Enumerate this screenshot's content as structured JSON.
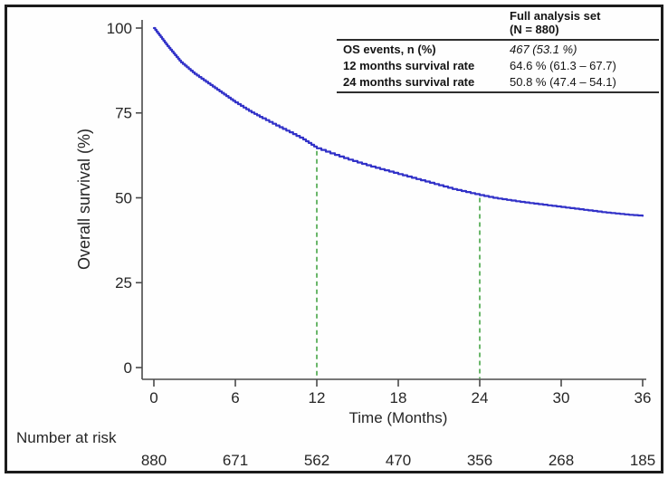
{
  "chart_data": {
    "type": "line",
    "title": "",
    "xlabel": "Time (Months)",
    "ylabel": "Overall survival (%)",
    "xlim": [
      0,
      36
    ],
    "ylim": [
      0,
      100
    ],
    "x_ticks": [
      0,
      6,
      12,
      18,
      24,
      30,
      36
    ],
    "y_ticks": [
      100,
      75,
      50,
      25,
      0
    ],
    "grid": false,
    "legend_position": "none",
    "series": [
      {
        "name": "Overall survival",
        "color": "#3232c8",
        "x": [
          0,
          1,
          2,
          3,
          4,
          5,
          6,
          7,
          8,
          9,
          10,
          11,
          12,
          13,
          14,
          15,
          16,
          17,
          18,
          19,
          20,
          21,
          22,
          23,
          24,
          25,
          26,
          27,
          28,
          29,
          30,
          31,
          32,
          33,
          34,
          35,
          36
        ],
        "y": [
          100,
          94.7,
          89.9,
          86.5,
          83.7,
          80.9,
          78.1,
          75.6,
          73.4,
          71.3,
          69.3,
          67.2,
          64.6,
          63.1,
          61.7,
          60.4,
          59.2,
          58.1,
          57.0,
          55.9,
          54.8,
          53.7,
          52.6,
          51.7,
          50.8,
          50.0,
          49.4,
          48.8,
          48.3,
          47.8,
          47.3,
          46.8,
          46.3,
          45.8,
          45.4,
          45.0,
          44.7
        ]
      }
    ],
    "reference_lines": [
      {
        "x": 12,
        "to_survival": 64.6,
        "color": "#46a546",
        "style": "dashed"
      },
      {
        "x": 24,
        "to_survival": 50.8,
        "color": "#46a546",
        "style": "dashed"
      }
    ],
    "number_at_risk": {
      "label": "Number at risk",
      "times": [
        0,
        6,
        12,
        18,
        24,
        30,
        36
      ],
      "counts": [
        880,
        671,
        562,
        470,
        356,
        268,
        185
      ]
    }
  },
  "stats_table": {
    "header": {
      "line1": "Full analysis set",
      "line2": "(N = 880)"
    },
    "rows": [
      {
        "label": "OS events, n (%)",
        "value": "467 (53.1 %)"
      },
      {
        "label": "12 months survival rate",
        "value": "64.6 % (61.3 – 67.7)"
      },
      {
        "label": "24 months survival rate",
        "value": "50.8 % (47.4 – 54.1)"
      }
    ]
  },
  "colors": {
    "curve": "#3232c8",
    "reference": "#46a546",
    "axis": "#4a4a4a",
    "text": "#262626",
    "frame": "#1c1c1c",
    "background": "#ffffff"
  }
}
